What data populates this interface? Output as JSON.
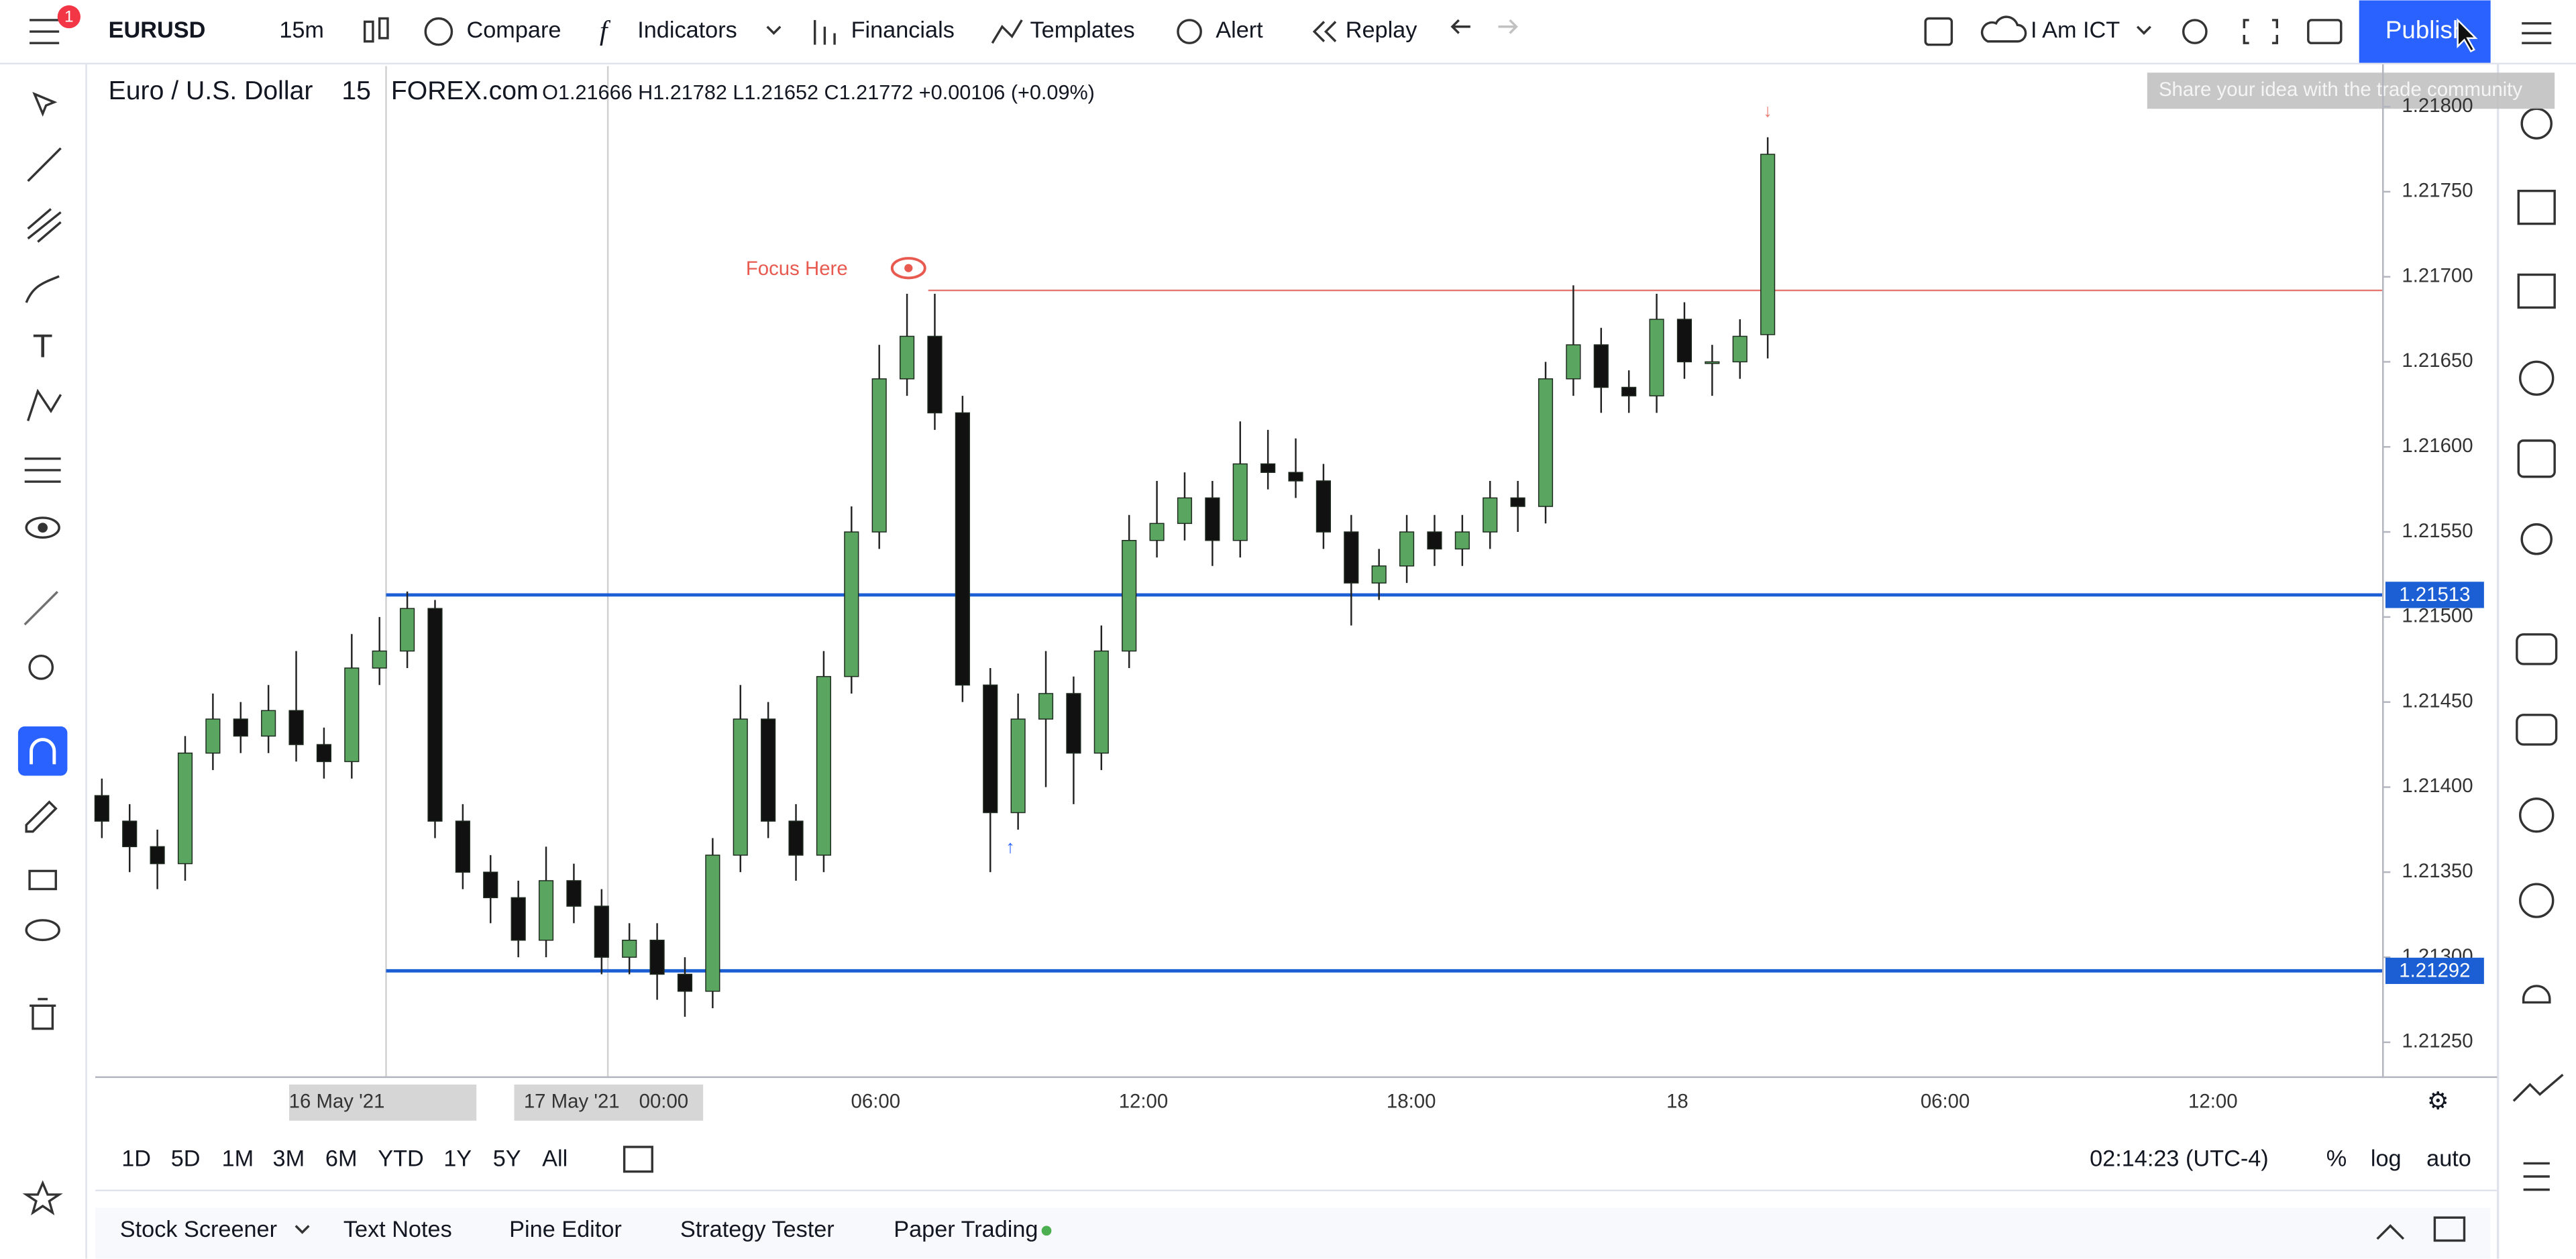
{
  "toolbar": {
    "symbol": "EURUSD",
    "interval": "15m",
    "compare": "Compare",
    "indicators": "Indicators",
    "financials": "Financials",
    "templates": "Templates",
    "alert": "Alert",
    "replay": "Replay",
    "account": "I Am ICT",
    "publish": "Publish",
    "badge": "1",
    "tooltip": "Share your idea with the trade community"
  },
  "legend": {
    "name": "Euro / U.S. Dollar",
    "interval": "15",
    "exchange": "FOREX.com",
    "ohlc_text": "O1.21666 H1.21782 L1.21652 C1.21772 +0.00106 (+0.09%)"
  },
  "chart_data": {
    "type": "candlestick",
    "ylim": [
      1.2123,
      1.2182
    ],
    "yticks": [
      {
        "value": 1.218,
        "label": "1.21800"
      },
      {
        "value": 1.2175,
        "label": "1.21750"
      },
      {
        "value": 1.217,
        "label": "1.21700"
      },
      {
        "value": 1.2165,
        "label": "1.21650"
      },
      {
        "value": 1.216,
        "label": "1.21600"
      },
      {
        "value": 1.2155,
        "label": "1.21550"
      },
      {
        "value": 1.215,
        "label": "1.21500"
      },
      {
        "value": 1.2145,
        "label": "1.21450"
      },
      {
        "value": 1.214,
        "label": "1.21400"
      },
      {
        "value": 1.2135,
        "label": "1.21350"
      },
      {
        "value": 1.213,
        "label": "1.21300"
      },
      {
        "value": 1.2125,
        "label": "1.21250"
      }
    ],
    "xtick_labels": [
      "16 May '21",
      "17 May '21",
      "00:00",
      "06:00",
      "12:00",
      "18:00",
      "18",
      "06:00",
      "12:00"
    ],
    "up_color": "#5aa55f",
    "down_color": "#111111",
    "hlines": [
      {
        "value": 1.21513,
        "label": "1.21513",
        "color": "#1c5fd4"
      },
      {
        "value": 1.21292,
        "label": "1.21292",
        "color": "#1c5fd4"
      },
      {
        "value": 1.21692,
        "color": "#e8786f"
      }
    ],
    "annotation": "Focus Here",
    "ohlc": [
      [
        1.21395,
        1.21405,
        1.2137,
        1.2138
      ],
      [
        1.2138,
        1.2139,
        1.2135,
        1.21365
      ],
      [
        1.21365,
        1.21375,
        1.2134,
        1.21355
      ],
      [
        1.21355,
        1.2143,
        1.21345,
        1.2142
      ],
      [
        1.2142,
        1.21455,
        1.2141,
        1.2144
      ],
      [
        1.2144,
        1.2145,
        1.2142,
        1.2143
      ],
      [
        1.2143,
        1.2146,
        1.2142,
        1.21445
      ],
      [
        1.21445,
        1.2148,
        1.21415,
        1.21425
      ],
      [
        1.21425,
        1.21435,
        1.21405,
        1.21415
      ],
      [
        1.21415,
        1.2149,
        1.21405,
        1.2147
      ],
      [
        1.2147,
        1.215,
        1.2146,
        1.2148
      ],
      [
        1.2148,
        1.21515,
        1.2147,
        1.21505
      ],
      [
        1.21505,
        1.2151,
        1.2137,
        1.2138
      ],
      [
        1.2138,
        1.2139,
        1.2134,
        1.2135
      ],
      [
        1.2135,
        1.2136,
        1.2132,
        1.21335
      ],
      [
        1.21335,
        1.21345,
        1.213,
        1.2131
      ],
      [
        1.2131,
        1.21365,
        1.213,
        1.21345
      ],
      [
        1.21345,
        1.21355,
        1.2132,
        1.2133
      ],
      [
        1.2133,
        1.2134,
        1.2129,
        1.213
      ],
      [
        1.213,
        1.2132,
        1.2129,
        1.2131
      ],
      [
        1.2131,
        1.2132,
        1.21275,
        1.2129
      ],
      [
        1.2129,
        1.213,
        1.21265,
        1.2128
      ],
      [
        1.2128,
        1.2137,
        1.2127,
        1.2136
      ],
      [
        1.2136,
        1.2146,
        1.2135,
        1.2144
      ],
      [
        1.2144,
        1.2145,
        1.2137,
        1.2138
      ],
      [
        1.2138,
        1.2139,
        1.21345,
        1.2136
      ],
      [
        1.2136,
        1.2148,
        1.2135,
        1.21465
      ],
      [
        1.21465,
        1.21565,
        1.21455,
        1.2155
      ],
      [
        1.2155,
        1.2166,
        1.2154,
        1.2164
      ],
      [
        1.2164,
        1.2169,
        1.2163,
        1.21665
      ],
      [
        1.21665,
        1.2169,
        1.2161,
        1.2162
      ],
      [
        1.2162,
        1.2163,
        1.2145,
        1.2146
      ],
      [
        1.2146,
        1.2147,
        1.2135,
        1.21385
      ],
      [
        1.21385,
        1.21455,
        1.21375,
        1.2144
      ],
      [
        1.2144,
        1.2148,
        1.214,
        1.21455
      ],
      [
        1.21455,
        1.21465,
        1.2139,
        1.2142
      ],
      [
        1.2142,
        1.21495,
        1.2141,
        1.2148
      ],
      [
        1.2148,
        1.2156,
        1.2147,
        1.21545
      ],
      [
        1.21545,
        1.2158,
        1.21535,
        1.21555
      ],
      [
        1.21555,
        1.21585,
        1.21545,
        1.2157
      ],
      [
        1.2157,
        1.2158,
        1.2153,
        1.21545
      ],
      [
        1.21545,
        1.21615,
        1.21535,
        1.2159
      ],
      [
        1.2159,
        1.2161,
        1.21575,
        1.21585
      ],
      [
        1.21585,
        1.21605,
        1.2157,
        1.2158
      ],
      [
        1.2158,
        1.2159,
        1.2154,
        1.2155
      ],
      [
        1.2155,
        1.2156,
        1.21495,
        1.2152
      ],
      [
        1.2152,
        1.2154,
        1.2151,
        1.2153
      ],
      [
        1.2153,
        1.2156,
        1.2152,
        1.2155
      ],
      [
        1.2155,
        1.2156,
        1.2153,
        1.2154
      ],
      [
        1.2154,
        1.2156,
        1.2153,
        1.2155
      ],
      [
        1.2155,
        1.2158,
        1.2154,
        1.2157
      ],
      [
        1.2157,
        1.2158,
        1.2155,
        1.21565
      ],
      [
        1.21565,
        1.2165,
        1.21555,
        1.2164
      ],
      [
        1.2164,
        1.21695,
        1.2163,
        1.2166
      ],
      [
        1.2166,
        1.2167,
        1.2162,
        1.21635
      ],
      [
        1.21635,
        1.21645,
        1.2162,
        1.2163
      ],
      [
        1.2163,
        1.2169,
        1.2162,
        1.21675
      ],
      [
        1.21675,
        1.21685,
        1.2164,
        1.2165
      ],
      [
        1.2165,
        1.2166,
        1.2163,
        1.2165
      ],
      [
        1.2165,
        1.21675,
        1.2164,
        1.21665
      ],
      [
        1.21666,
        1.21782,
        1.21652,
        1.21772
      ]
    ]
  },
  "timeframes": [
    "1D",
    "5D",
    "1M",
    "3M",
    "6M",
    "YTD",
    "1Y",
    "5Y",
    "All"
  ],
  "status": {
    "clock": "02:14:23 (UTC-4)",
    "percent": "%",
    "log": "log",
    "auto": "auto"
  },
  "tabs": [
    "Stock Screener",
    "Text Notes",
    "Pine Editor",
    "Strategy Tester",
    "Paper Trading"
  ]
}
